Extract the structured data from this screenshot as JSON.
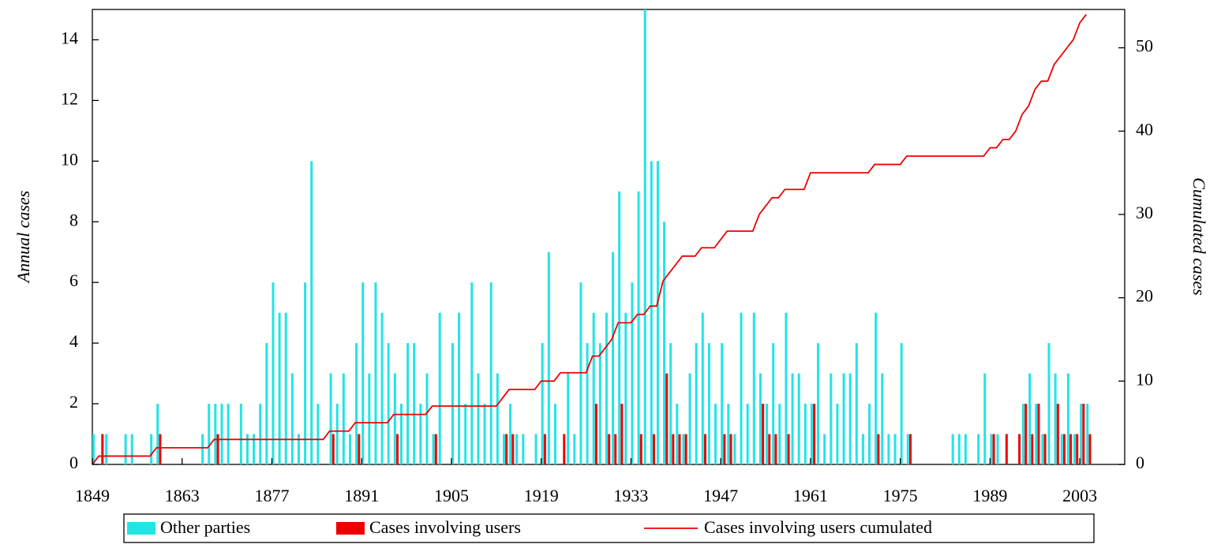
{
  "chart_data": {
    "type": "bar",
    "y_label": "Annual cases",
    "y2_label": "Cumulated cases",
    "x": [
      1849,
      1850,
      1851,
      1852,
      1853,
      1854,
      1855,
      1856,
      1857,
      1858,
      1859,
      1860,
      1861,
      1862,
      1863,
      1864,
      1865,
      1866,
      1867,
      1868,
      1869,
      1870,
      1871,
      1872,
      1873,
      1874,
      1875,
      1876,
      1877,
      1878,
      1879,
      1880,
      1881,
      1882,
      1883,
      1884,
      1885,
      1886,
      1887,
      1888,
      1889,
      1890,
      1891,
      1892,
      1893,
      1894,
      1895,
      1896,
      1897,
      1898,
      1899,
      1900,
      1901,
      1902,
      1903,
      1904,
      1905,
      1906,
      1907,
      1908,
      1909,
      1910,
      1911,
      1912,
      1913,
      1914,
      1915,
      1916,
      1917,
      1918,
      1919,
      1920,
      1921,
      1922,
      1923,
      1924,
      1925,
      1926,
      1927,
      1928,
      1929,
      1930,
      1931,
      1932,
      1933,
      1934,
      1935,
      1936,
      1937,
      1938,
      1939,
      1940,
      1941,
      1942,
      1943,
      1944,
      1945,
      1946,
      1947,
      1948,
      1949,
      1950,
      1951,
      1952,
      1953,
      1954,
      1955,
      1956,
      1957,
      1958,
      1959,
      1960,
      1961,
      1962,
      1963,
      1964,
      1965,
      1966,
      1967,
      1968,
      1969,
      1970,
      1971,
      1972,
      1973,
      1974,
      1975,
      1976,
      1977,
      1978,
      1979,
      1980,
      1981,
      1982,
      1983,
      1984,
      1985,
      1986,
      1987,
      1988,
      1989,
      1990,
      1991,
      1992,
      1993,
      1994,
      1995,
      1996,
      1997,
      1998,
      1999,
      2000,
      2001,
      2002,
      2003,
      2004
    ],
    "series": [
      {
        "name": "Other parties",
        "color": "#22e4e4",
        "values": [
          1,
          0,
          1,
          0,
          0,
          1,
          1,
          0,
          0,
          1,
          2,
          0,
          0,
          0,
          0,
          0,
          0,
          1,
          2,
          2,
          2,
          2,
          0,
          2,
          1,
          1,
          2,
          4,
          6,
          5,
          5,
          3,
          1,
          6,
          10,
          2,
          0,
          3,
          2,
          3,
          1,
          4,
          6,
          3,
          6,
          5,
          4,
          3,
          2,
          4,
          4,
          2,
          3,
          1,
          5,
          0,
          4,
          5,
          2,
          6,
          3,
          2,
          6,
          3,
          1,
          2,
          1,
          1,
          0,
          1,
          4,
          7,
          2,
          0,
          3,
          1,
          6,
          4,
          5,
          4,
          5,
          7,
          9,
          5,
          6,
          9,
          16,
          10,
          10,
          8,
          4,
          2,
          1,
          3,
          4,
          5,
          4,
          2,
          4,
          2,
          1,
          5,
          2,
          5,
          3,
          2,
          4,
          2,
          5,
          3,
          3,
          2,
          2,
          4,
          1,
          3,
          2,
          3,
          3,
          4,
          1,
          2,
          5,
          3,
          1,
          1,
          4,
          1,
          0,
          0,
          0,
          0,
          0,
          0,
          1,
          1,
          1,
          0,
          1,
          3,
          1,
          1,
          0,
          0,
          0,
          2,
          3,
          2,
          1,
          4,
          3,
          1,
          3,
          1,
          2,
          2
        ]
      },
      {
        "name": "Cases involving users",
        "color": "#ee0000",
        "values": [
          0,
          1,
          0,
          0,
          0,
          0,
          0,
          0,
          0,
          0,
          1,
          0,
          0,
          0,
          0,
          0,
          0,
          0,
          0,
          1,
          0,
          0,
          0,
          0,
          0,
          0,
          0,
          0,
          0,
          0,
          0,
          0,
          0,
          0,
          0,
          0,
          0,
          1,
          0,
          0,
          0,
          1,
          0,
          0,
          0,
          0,
          0,
          1,
          0,
          0,
          0,
          0,
          0,
          1,
          0,
          0,
          0,
          0,
          0,
          0,
          0,
          0,
          0,
          0,
          1,
          1,
          0,
          0,
          0,
          0,
          1,
          0,
          0,
          1,
          0,
          0,
          0,
          0,
          2,
          0,
          1,
          1,
          2,
          0,
          0,
          1,
          0,
          1,
          0,
          3,
          1,
          1,
          1,
          0,
          0,
          1,
          0,
          0,
          1,
          1,
          0,
          0,
          0,
          0,
          2,
          1,
          1,
          0,
          1,
          0,
          0,
          0,
          2,
          0,
          0,
          0,
          0,
          0,
          0,
          0,
          0,
          0,
          1,
          0,
          0,
          0,
          0,
          1,
          0,
          0,
          0,
          0,
          0,
          0,
          0,
          0,
          0,
          0,
          0,
          0,
          1,
          0,
          1,
          0,
          1,
          2,
          1,
          2,
          1,
          0,
          2,
          1,
          1,
          1,
          2,
          1
        ]
      },
      {
        "name": "Cases involving users cumulated",
        "color": "#ee0000",
        "type": "line",
        "axis": "y2",
        "values": [
          0,
          1,
          1,
          1,
          1,
          1,
          1,
          1,
          1,
          1,
          2,
          2,
          2,
          2,
          2,
          2,
          2,
          2,
          2,
          3,
          3,
          3,
          3,
          3,
          3,
          3,
          3,
          3,
          3,
          3,
          3,
          3,
          3,
          3,
          3,
          3,
          3,
          4,
          4,
          4,
          4,
          5,
          5,
          5,
          5,
          5,
          5,
          6,
          6,
          6,
          6,
          6,
          6,
          7,
          7,
          7,
          7,
          7,
          7,
          7,
          7,
          7,
          7,
          7,
          8,
          9,
          9,
          9,
          9,
          9,
          10,
          10,
          10,
          11,
          11,
          11,
          11,
          11,
          13,
          13,
          14,
          15,
          17,
          17,
          17,
          18,
          18,
          19,
          19,
          22,
          23,
          24,
          25,
          25,
          25,
          26,
          26,
          26,
          27,
          28,
          28,
          28,
          28,
          28,
          30,
          31,
          32,
          32,
          33,
          33,
          33,
          33,
          35,
          35,
          35,
          35,
          35,
          35,
          35,
          35,
          35,
          35,
          36,
          36,
          36,
          36,
          36,
          37,
          37,
          37,
          37,
          37,
          37,
          37,
          37,
          37,
          37,
          37,
          37,
          37,
          38,
          38,
          39,
          39,
          40,
          42,
          43,
          45,
          46,
          46,
          48,
          49,
          50,
          51,
          53,
          54
        ]
      }
    ],
    "xlim": [
      1849,
      2010
    ],
    "xticks": [
      1849,
      1863,
      1877,
      1891,
      1905,
      1919,
      1933,
      1947,
      1961,
      1975,
      1989,
      2003
    ],
    "ylim": [
      0,
      15
    ],
    "yticks": [
      0,
      2,
      4,
      6,
      8,
      10,
      12,
      14
    ],
    "y2lim": [
      0,
      54.6
    ],
    "y2ticks": [
      0,
      10,
      20,
      30,
      40,
      50
    ]
  }
}
